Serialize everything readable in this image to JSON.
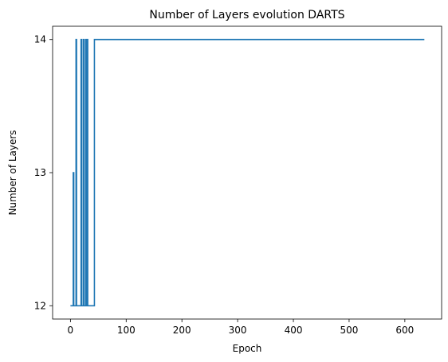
{
  "chart_data": {
    "type": "line",
    "title": "Number of Layers evolution DARTS",
    "xlabel": "Epoch",
    "ylabel": "Number of Layers",
    "xlim": [
      -32,
      666
    ],
    "ylim": [
      11.9,
      14.1
    ],
    "xticks": [
      0,
      100,
      200,
      300,
      400,
      500,
      600
    ],
    "yticks": [
      12,
      13,
      14
    ],
    "grid": false,
    "series": [
      {
        "color": "#1f77b4",
        "x": [
          0,
          5,
          5,
          6,
          6,
          7,
          7,
          10,
          10,
          11,
          11,
          19,
          19,
          20,
          20,
          23,
          23,
          24,
          24,
          27,
          27,
          28,
          28,
          30,
          30,
          31,
          31,
          43,
          43,
          635
        ],
        "y": [
          12,
          12,
          13,
          13,
          12,
          12,
          12,
          12,
          14,
          14,
          12,
          12,
          14,
          14,
          12,
          12,
          14,
          14,
          12,
          12,
          14,
          14,
          12,
          12,
          14,
          14,
          12,
          12,
          14,
          14
        ]
      }
    ]
  }
}
